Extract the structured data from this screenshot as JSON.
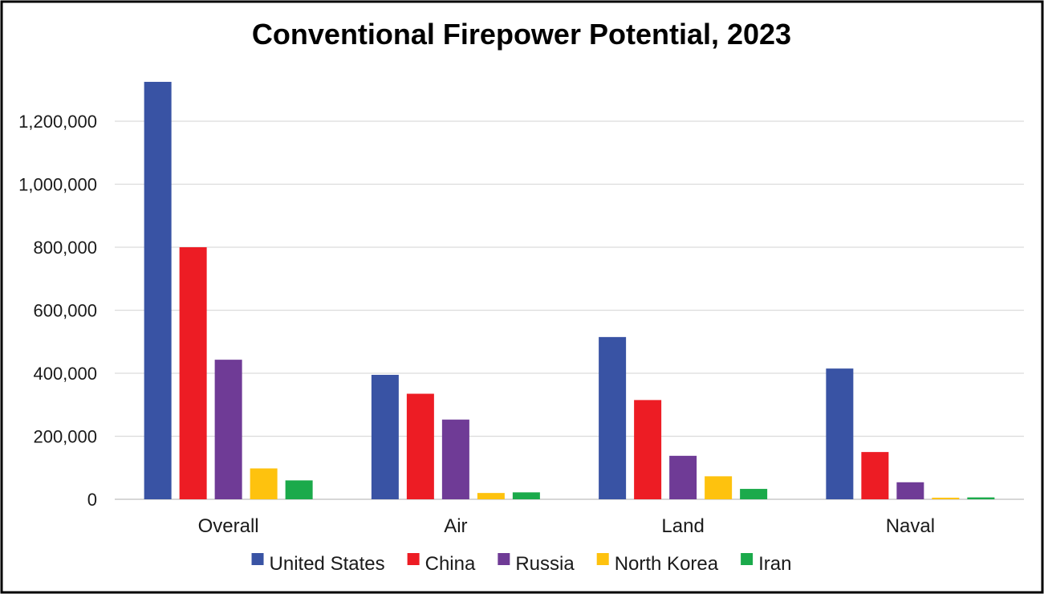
{
  "chart_data": {
    "type": "bar",
    "title": "Conventional Firepower Potential, 2023",
    "xlabel": "",
    "ylabel": "",
    "ylim": [
      0,
      1330000
    ],
    "yticks": [
      0,
      200000,
      400000,
      600000,
      800000,
      1000000,
      1200000
    ],
    "ytick_labels": [
      "0",
      "200,000",
      "400,000",
      "600,000",
      "800,000",
      "1,000,000",
      "1,200,000"
    ],
    "grid": true,
    "legend_position": "bottom-center",
    "categories": [
      "Overall",
      "Air",
      "Land",
      "Naval"
    ],
    "series": [
      {
        "name": "United States",
        "color": "#3953A4",
        "values": [
          1325000,
          395000,
          515000,
          415000
        ]
      },
      {
        "name": "China",
        "color": "#ED1C24",
        "values": [
          800000,
          335000,
          315000,
          150000
        ]
      },
      {
        "name": "Russia",
        "color": "#6F3B96",
        "values": [
          443000,
          253000,
          138000,
          54000
        ]
      },
      {
        "name": "North Korea",
        "color": "#FEC20E",
        "values": [
          98000,
          20000,
          73000,
          5000
        ]
      },
      {
        "name": "Iran",
        "color": "#1BAA4B",
        "values": [
          60000,
          22000,
          33000,
          6000
        ]
      }
    ]
  }
}
